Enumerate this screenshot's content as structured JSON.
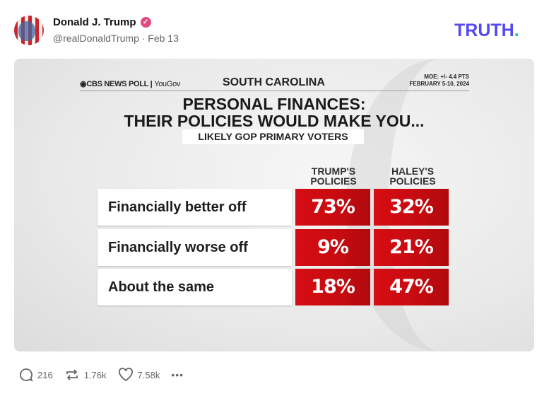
{
  "post": {
    "author": "Donald J. Trump",
    "handle": "@realDonaldTrump · Feb 13",
    "brand": "TRUTH",
    "brand_dot": ".",
    "brand_color": "#5448ee",
    "verified_color": "#e5487a"
  },
  "graphic": {
    "source": "CBS NEWS POLL",
    "source_partner": "YouGov",
    "state": "SOUTH CAROLINA",
    "moe": "MOE: +/- 4.4 PTS",
    "dates": "FEBRUARY 5-10, 2024",
    "title_line1": "PERSONAL FINANCES:",
    "title_line2": "THEIR POLICIES WOULD MAKE YOU...",
    "subtitle": "LIKELY GOP PRIMARY VOTERS",
    "cell_color": "#d70d14"
  },
  "chart_data": {
    "type": "table",
    "columns": [
      "TRUMP'S POLICIES",
      "HALEY'S POLICIES"
    ],
    "rows": [
      {
        "label": "Financially better off",
        "values": [
          "73%",
          "32%"
        ]
      },
      {
        "label": "Financially worse off",
        "values": [
          "9%",
          "21%"
        ]
      },
      {
        "label": "About the same",
        "values": [
          "18%",
          "47%"
        ]
      }
    ]
  },
  "actions": {
    "replies": "216",
    "retruths": "1.76k",
    "likes": "7.58k",
    "more": "•••"
  }
}
